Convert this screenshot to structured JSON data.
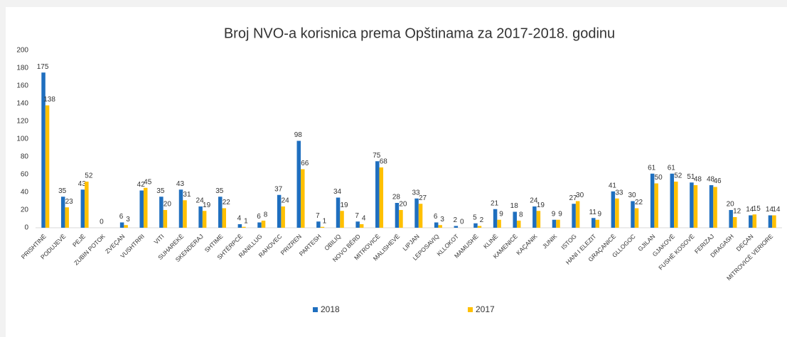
{
  "chart_data": {
    "type": "bar",
    "title": "Broj NVO-a korisnica prema Opštinama za 2017-2018. godinu",
    "categories": [
      "PRISHTINË",
      "PODUJEVË",
      "PEJË",
      "ZUBIN POTOK",
      "ZVEÇAN",
      "VUSHTRRI",
      "VITI",
      "SUHAREKË",
      "SKENDERAJ",
      "SHTIME",
      "SHTËRPCË",
      "RANILLUG",
      "RAHOVEC",
      "PRIZREN",
      "PARTESH",
      "OBILIQ",
      "NOVO BËRD",
      "MITROVICË",
      "MALISHEVË",
      "LIPJAN",
      "LEPOSAVIQ",
      "KLLOKOT",
      "MAMUSHË",
      "KLINË",
      "KAMENICË",
      "KAÇANIK",
      "JUNIK",
      "ISTOG",
      "HANI I ELEZIT",
      "GRAÇANICË",
      "GLLOGOC",
      "GJILAN",
      "GJAKOVË",
      "FUSHË KOSOVË",
      "FERIZAJ",
      "DRAGASH",
      "DEÇAN",
      "MITROVICË VERIORE"
    ],
    "series": [
      {
        "name": "2018",
        "color": "#1f6fbf",
        "values": [
          175,
          35,
          43,
          0,
          6,
          42,
          35,
          43,
          24,
          35,
          4,
          6,
          37,
          98,
          7,
          34,
          7,
          75,
          28,
          33,
          6,
          2,
          5,
          21,
          18,
          24,
          9,
          27,
          11,
          41,
          30,
          61,
          61,
          51,
          48,
          20,
          14,
          14
        ]
      },
      {
        "name": "2017",
        "color": "#ffc000",
        "values": [
          138,
          23,
          52,
          null,
          3,
          45,
          20,
          31,
          19,
          22,
          1,
          8,
          24,
          66,
          1,
          19,
          4,
          68,
          20,
          27,
          3,
          0,
          2,
          9,
          8,
          19,
          9,
          30,
          9,
          33,
          22,
          50,
          52,
          48,
          46,
          12,
          15,
          14
        ]
      }
    ],
    "ylim": [
      0,
      200
    ],
    "yticks": [
      0,
      20,
      40,
      60,
      80,
      100,
      120,
      140,
      160,
      180,
      200
    ]
  }
}
